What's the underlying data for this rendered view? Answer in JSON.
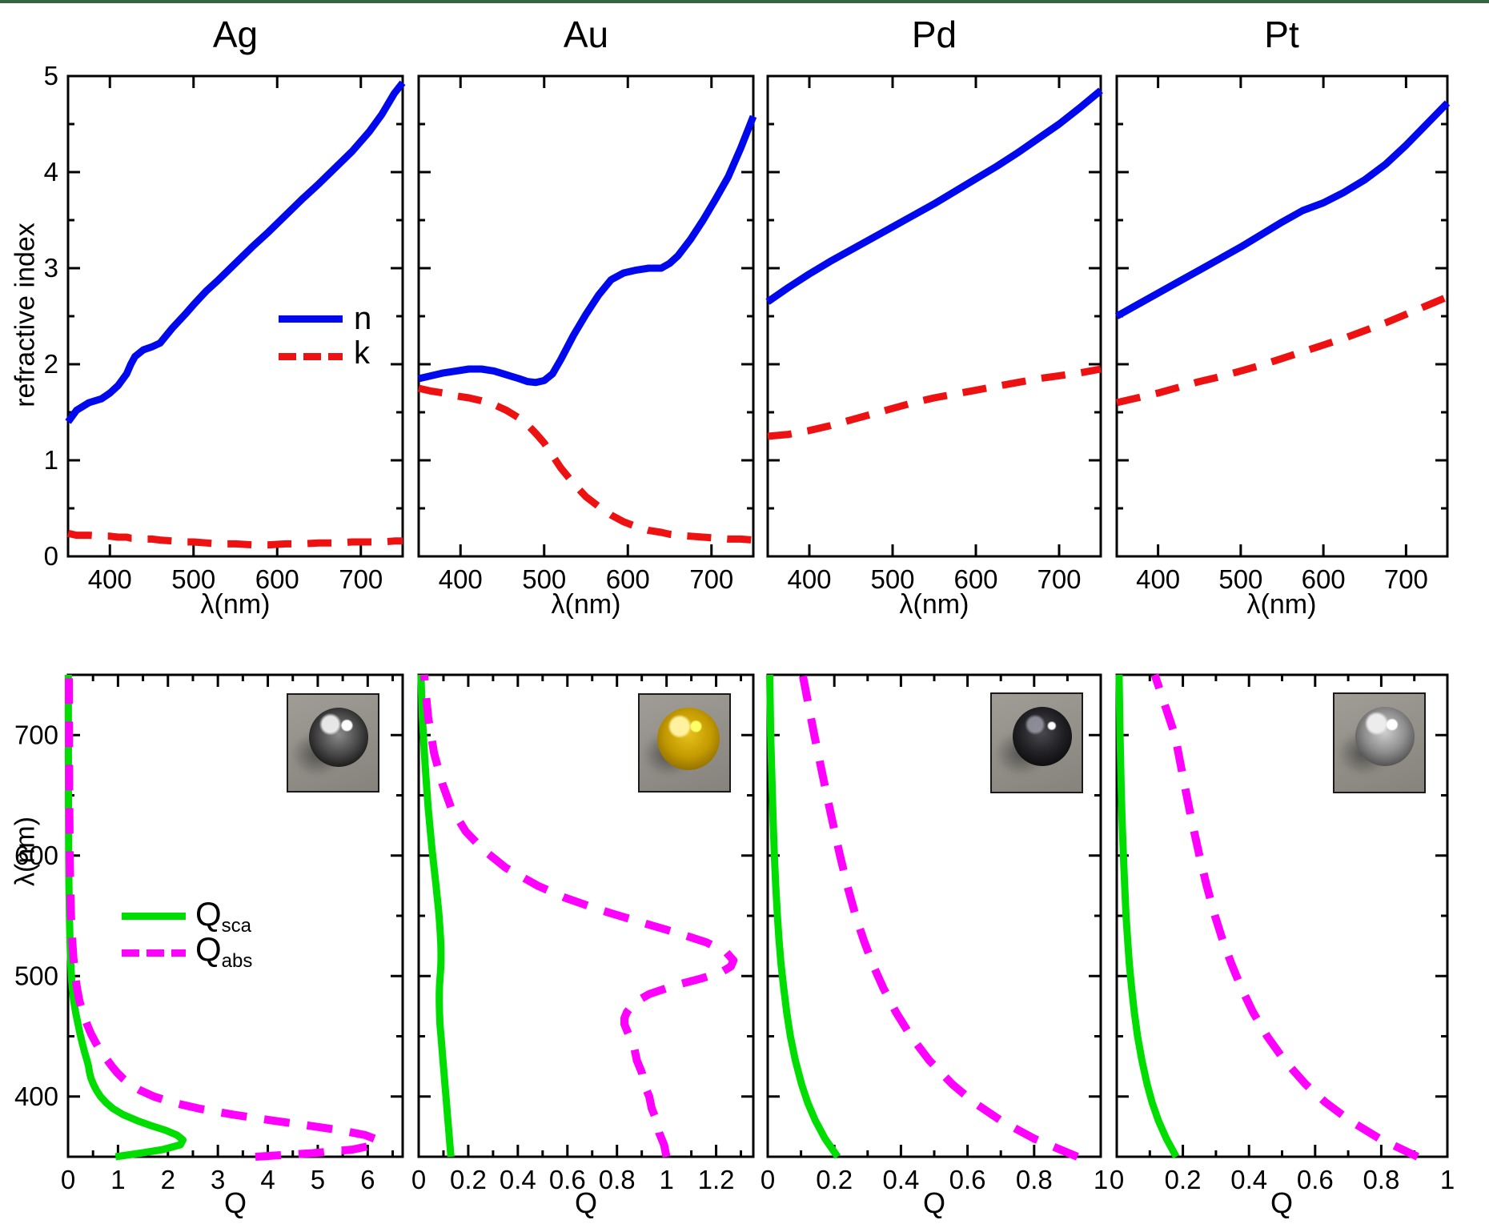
{
  "figure": {
    "top_border_color": "#35653f",
    "background": "#ffffff"
  },
  "colors": {
    "n_line": "#0008ee",
    "k_line": "#ee1111",
    "qsca_line": "#00dd00",
    "qabs_line": "#ff00ff",
    "text": "#000000"
  },
  "chart_data": {
    "type": "line",
    "top_row": {
      "ylabel": "refractive index",
      "xlabel": "λ(nm)",
      "xlim": [
        350,
        750
      ],
      "ylim": [
        0,
        5
      ],
      "xticks": [
        400,
        500,
        600,
        700
      ],
      "xtick_labels": [
        "400",
        "500",
        "600",
        "700"
      ],
      "yticks": [
        0,
        1,
        2,
        3,
        4,
        5
      ],
      "ytick_labels": [
        "0",
        "1",
        "2",
        "3",
        "4",
        "5"
      ],
      "legend": [
        {
          "label": "n",
          "style": "solid"
        },
        {
          "label": "k",
          "style": "dashed"
        }
      ],
      "series": [
        {
          "title": "Ag",
          "lambda": [
            350,
            360,
            375,
            390,
            400,
            410,
            420,
            425,
            430,
            440,
            450,
            460,
            475,
            490,
            500,
            515,
            530,
            550,
            570,
            590,
            610,
            630,
            650,
            670,
            690,
            710,
            725,
            740,
            750
          ],
          "n": [
            1.4,
            1.52,
            1.6,
            1.64,
            1.7,
            1.78,
            1.9,
            2.0,
            2.08,
            2.15,
            2.18,
            2.22,
            2.38,
            2.52,
            2.62,
            2.76,
            2.88,
            3.05,
            3.22,
            3.38,
            3.55,
            3.72,
            3.88,
            4.05,
            4.22,
            4.42,
            4.6,
            4.82,
            4.93
          ],
          "k": [
            0.24,
            0.22,
            0.22,
            0.21,
            0.21,
            0.2,
            0.2,
            0.19,
            0.19,
            0.18,
            0.18,
            0.17,
            0.16,
            0.15,
            0.15,
            0.14,
            0.13,
            0.13,
            0.12,
            0.12,
            0.13,
            0.13,
            0.14,
            0.14,
            0.15,
            0.15,
            0.15,
            0.16,
            0.16
          ]
        },
        {
          "title": "Au",
          "lambda": [
            350,
            365,
            380,
            395,
            410,
            425,
            440,
            455,
            470,
            480,
            490,
            500,
            510,
            520,
            535,
            550,
            565,
            580,
            595,
            610,
            625,
            640,
            650,
            660,
            675,
            690,
            705,
            720,
            735,
            750
          ],
          "n": [
            1.85,
            1.88,
            1.91,
            1.93,
            1.95,
            1.95,
            1.93,
            1.89,
            1.85,
            1.82,
            1.81,
            1.83,
            1.9,
            2.05,
            2.3,
            2.52,
            2.72,
            2.88,
            2.95,
            2.98,
            3.0,
            3.0,
            3.05,
            3.13,
            3.3,
            3.5,
            3.72,
            3.95,
            4.25,
            4.58
          ],
          "k": [
            1.75,
            1.72,
            1.7,
            1.67,
            1.65,
            1.62,
            1.58,
            1.52,
            1.44,
            1.37,
            1.28,
            1.18,
            1.05,
            0.92,
            0.76,
            0.62,
            0.52,
            0.43,
            0.36,
            0.31,
            0.27,
            0.25,
            0.23,
            0.22,
            0.21,
            0.2,
            0.19,
            0.18,
            0.18,
            0.17
          ]
        },
        {
          "title": "Pd",
          "lambda": [
            350,
            375,
            400,
            425,
            450,
            475,
            500,
            525,
            550,
            575,
            600,
            625,
            650,
            675,
            700,
            725,
            750
          ],
          "n": [
            2.65,
            2.8,
            2.94,
            3.07,
            3.19,
            3.31,
            3.43,
            3.55,
            3.67,
            3.8,
            3.93,
            4.06,
            4.2,
            4.35,
            4.5,
            4.67,
            4.85
          ],
          "k": [
            1.25,
            1.27,
            1.31,
            1.36,
            1.42,
            1.48,
            1.54,
            1.6,
            1.65,
            1.69,
            1.73,
            1.77,
            1.81,
            1.85,
            1.88,
            1.91,
            1.95
          ]
        },
        {
          "title": "Pt",
          "lambda": [
            350,
            375,
            400,
            425,
            450,
            475,
            500,
            525,
            550,
            575,
            600,
            625,
            650,
            675,
            700,
            725,
            750
          ],
          "n": [
            2.5,
            2.62,
            2.74,
            2.86,
            2.98,
            3.1,
            3.22,
            3.35,
            3.48,
            3.6,
            3.68,
            3.79,
            3.92,
            4.08,
            4.28,
            4.5,
            4.72
          ],
          "k": [
            1.6,
            1.65,
            1.7,
            1.76,
            1.82,
            1.87,
            1.93,
            1.99,
            2.06,
            2.13,
            2.2,
            2.27,
            2.35,
            2.43,
            2.52,
            2.61,
            2.7
          ]
        }
      ]
    },
    "bottom_row": {
      "ylabel": "λ(nm)",
      "xlabel": "Q",
      "ylim": [
        350,
        750
      ],
      "yticks": [
        400,
        500,
        600,
        700
      ],
      "ytick_labels": [
        "400",
        "500",
        "600",
        "700"
      ],
      "legend": [
        {
          "label_main": "Q",
          "label_sub": "sca",
          "style": "solid"
        },
        {
          "label_main": "Q",
          "label_sub": "abs",
          "style": "dashed"
        }
      ],
      "charts": [
        {
          "metal": "Ag",
          "sphere": "silver",
          "xlim": [
            0,
            6.7
          ],
          "xticks": [
            0,
            1,
            2,
            3,
            4,
            5,
            6
          ],
          "xtick_labels": [
            "0",
            "1",
            "2",
            "3",
            "4",
            "5",
            "6"
          ],
          "lambda": [
            350,
            353,
            356,
            360,
            364,
            368,
            372,
            376,
            380,
            385,
            390,
            395,
            400,
            405,
            410,
            415,
            420,
            425,
            430,
            437,
            445,
            452,
            460,
            470,
            480,
            490,
            500,
            515,
            530,
            550,
            575,
            600,
            650,
            700,
            750
          ],
          "Qsca": [
            0.95,
            1.45,
            1.9,
            2.25,
            2.3,
            2.18,
            1.95,
            1.65,
            1.38,
            1.1,
            0.9,
            0.76,
            0.65,
            0.57,
            0.51,
            0.46,
            0.43,
            0.41,
            0.38,
            0.33,
            0.28,
            0.24,
            0.2,
            0.15,
            0.11,
            0.085,
            0.068,
            0.05,
            0.038,
            0.027,
            0.018,
            0.013,
            0.008,
            0.006,
            0.005
          ],
          "Qabs": [
            3.75,
            4.9,
            5.7,
            6.15,
            6.2,
            5.95,
            5.45,
            4.8,
            4.1,
            3.3,
            2.62,
            2.1,
            1.72,
            1.45,
            1.25,
            1.1,
            0.98,
            0.88,
            0.79,
            0.66,
            0.55,
            0.46,
            0.38,
            0.29,
            0.225,
            0.18,
            0.145,
            0.108,
            0.083,
            0.06,
            0.044,
            0.034,
            0.024,
            0.019,
            0.016
          ]
        },
        {
          "metal": "Au",
          "sphere": "gold",
          "xlim": [
            0,
            1.35
          ],
          "xticks": [
            0,
            0.2,
            0.4,
            0.6,
            0.8,
            1,
            1.2
          ],
          "xtick_labels": [
            "0",
            "0.2",
            "0.4",
            "0.6",
            "0.8",
            "1",
            "1.2"
          ],
          "lambda": [
            350,
            360,
            370,
            380,
            390,
            400,
            410,
            420,
            430,
            440,
            450,
            455,
            460,
            465,
            470,
            478,
            485,
            492,
            498,
            503,
            508,
            513,
            520,
            528,
            536,
            545,
            555,
            565,
            575,
            590,
            605,
            620,
            640,
            660,
            685,
            715,
            750
          ],
          "Qsca": [
            0.13,
            0.126,
            0.122,
            0.118,
            0.114,
            0.11,
            0.106,
            0.102,
            0.098,
            0.094,
            0.09,
            0.088,
            0.086,
            0.085,
            0.084,
            0.083,
            0.083,
            0.084,
            0.086,
            0.088,
            0.089,
            0.09,
            0.09,
            0.089,
            0.087,
            0.084,
            0.08,
            0.075,
            0.07,
            0.062,
            0.054,
            0.047,
            0.038,
            0.031,
            0.023,
            0.015,
            0.009
          ],
          "Qabs": [
            1.0,
            0.99,
            0.97,
            0.96,
            0.94,
            0.93,
            0.91,
            0.9,
            0.88,
            0.87,
            0.85,
            0.84,
            0.83,
            0.83,
            0.84,
            0.87,
            0.93,
            1.03,
            1.14,
            1.22,
            1.26,
            1.27,
            1.24,
            1.16,
            1.04,
            0.89,
            0.73,
            0.59,
            0.48,
            0.35,
            0.26,
            0.19,
            0.13,
            0.095,
            0.062,
            0.038,
            0.022
          ]
        },
        {
          "metal": "Pd",
          "sphere": "dark",
          "xlim": [
            0,
            1.0
          ],
          "xticks": [
            0,
            0.2,
            0.4,
            0.6,
            0.8,
            1
          ],
          "xtick_labels": [
            "0",
            "0.2",
            "0.4",
            "0.6",
            "0.8",
            "1"
          ],
          "lambda": [
            350,
            365,
            380,
            395,
            410,
            430,
            450,
            470,
            490,
            510,
            530,
            550,
            575,
            600,
            630,
            660,
            700,
            750
          ],
          "Qsca": [
            0.21,
            0.172,
            0.143,
            0.12,
            0.102,
            0.083,
            0.068,
            0.057,
            0.048,
            0.04,
            0.034,
            0.029,
            0.024,
            0.02,
            0.016,
            0.013,
            0.009,
            0.006
          ],
          "Qabs": [
            0.93,
            0.8,
            0.7,
            0.62,
            0.555,
            0.485,
            0.43,
            0.385,
            0.347,
            0.315,
            0.288,
            0.264,
            0.239,
            0.217,
            0.193,
            0.17,
            0.14,
            0.105
          ]
        },
        {
          "metal": "Pt",
          "sphere": "platinum",
          "xlim": [
            0,
            1.0
          ],
          "xticks": [
            0,
            0.2,
            0.4,
            0.6,
            0.8,
            1
          ],
          "xtick_labels": [
            "0",
            "0.2",
            "0.4",
            "0.6",
            "0.8",
            "1"
          ],
          "lambda": [
            350,
            365,
            380,
            395,
            410,
            430,
            450,
            470,
            490,
            510,
            530,
            550,
            575,
            600,
            630,
            660,
            700,
            750
          ],
          "Qsca": [
            0.18,
            0.15,
            0.126,
            0.107,
            0.092,
            0.076,
            0.063,
            0.053,
            0.045,
            0.038,
            0.033,
            0.028,
            0.024,
            0.02,
            0.016,
            0.013,
            0.01,
            0.007
          ],
          "Qabs": [
            0.91,
            0.795,
            0.705,
            0.632,
            0.572,
            0.507,
            0.455,
            0.412,
            0.377,
            0.347,
            0.32,
            0.297,
            0.272,
            0.25,
            0.226,
            0.204,
            0.176,
            0.115
          ]
        }
      ]
    }
  }
}
